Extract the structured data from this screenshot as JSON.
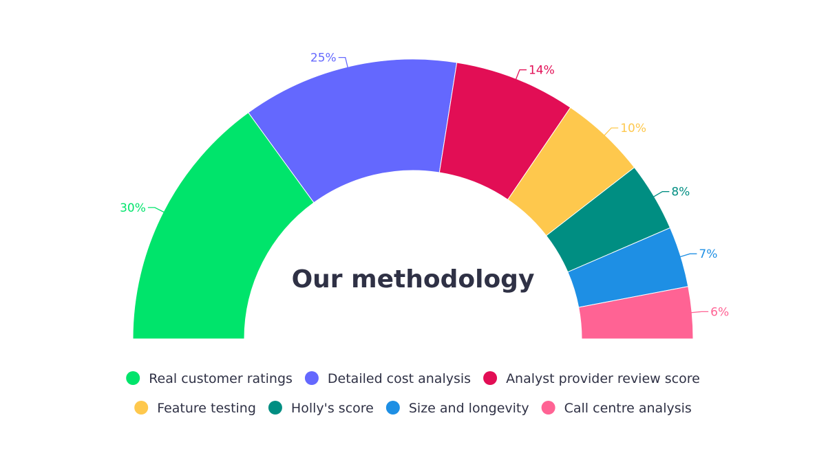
{
  "chart_data": {
    "type": "pie",
    "variant": "semicircle-donut",
    "title": "Our methodology",
    "value_unit": "%",
    "grid": false,
    "legend_placement": "bottom",
    "slices": [
      {
        "name": "Real customer ratings",
        "value": 30,
        "label": "30%",
        "color": "#00e46b"
      },
      {
        "name": "Detailed cost analysis",
        "value": 25,
        "label": "25%",
        "color": "#6468fe"
      },
      {
        "name": "Analyst provider review score",
        "value": 14,
        "label": "14%",
        "color": "#e20e55"
      },
      {
        "name": "Feature testing",
        "value": 10,
        "label": "10%",
        "color": "#fec84d"
      },
      {
        "name": "Holly's score",
        "value": 8,
        "label": "8%",
        "color": "#008e82"
      },
      {
        "name": "Size and longevity",
        "value": 7,
        "label": "7%",
        "color": "#1e8fe4"
      },
      {
        "name": "Call centre analysis",
        "value": 6,
        "label": "6%",
        "color": "#ff6394"
      }
    ]
  }
}
